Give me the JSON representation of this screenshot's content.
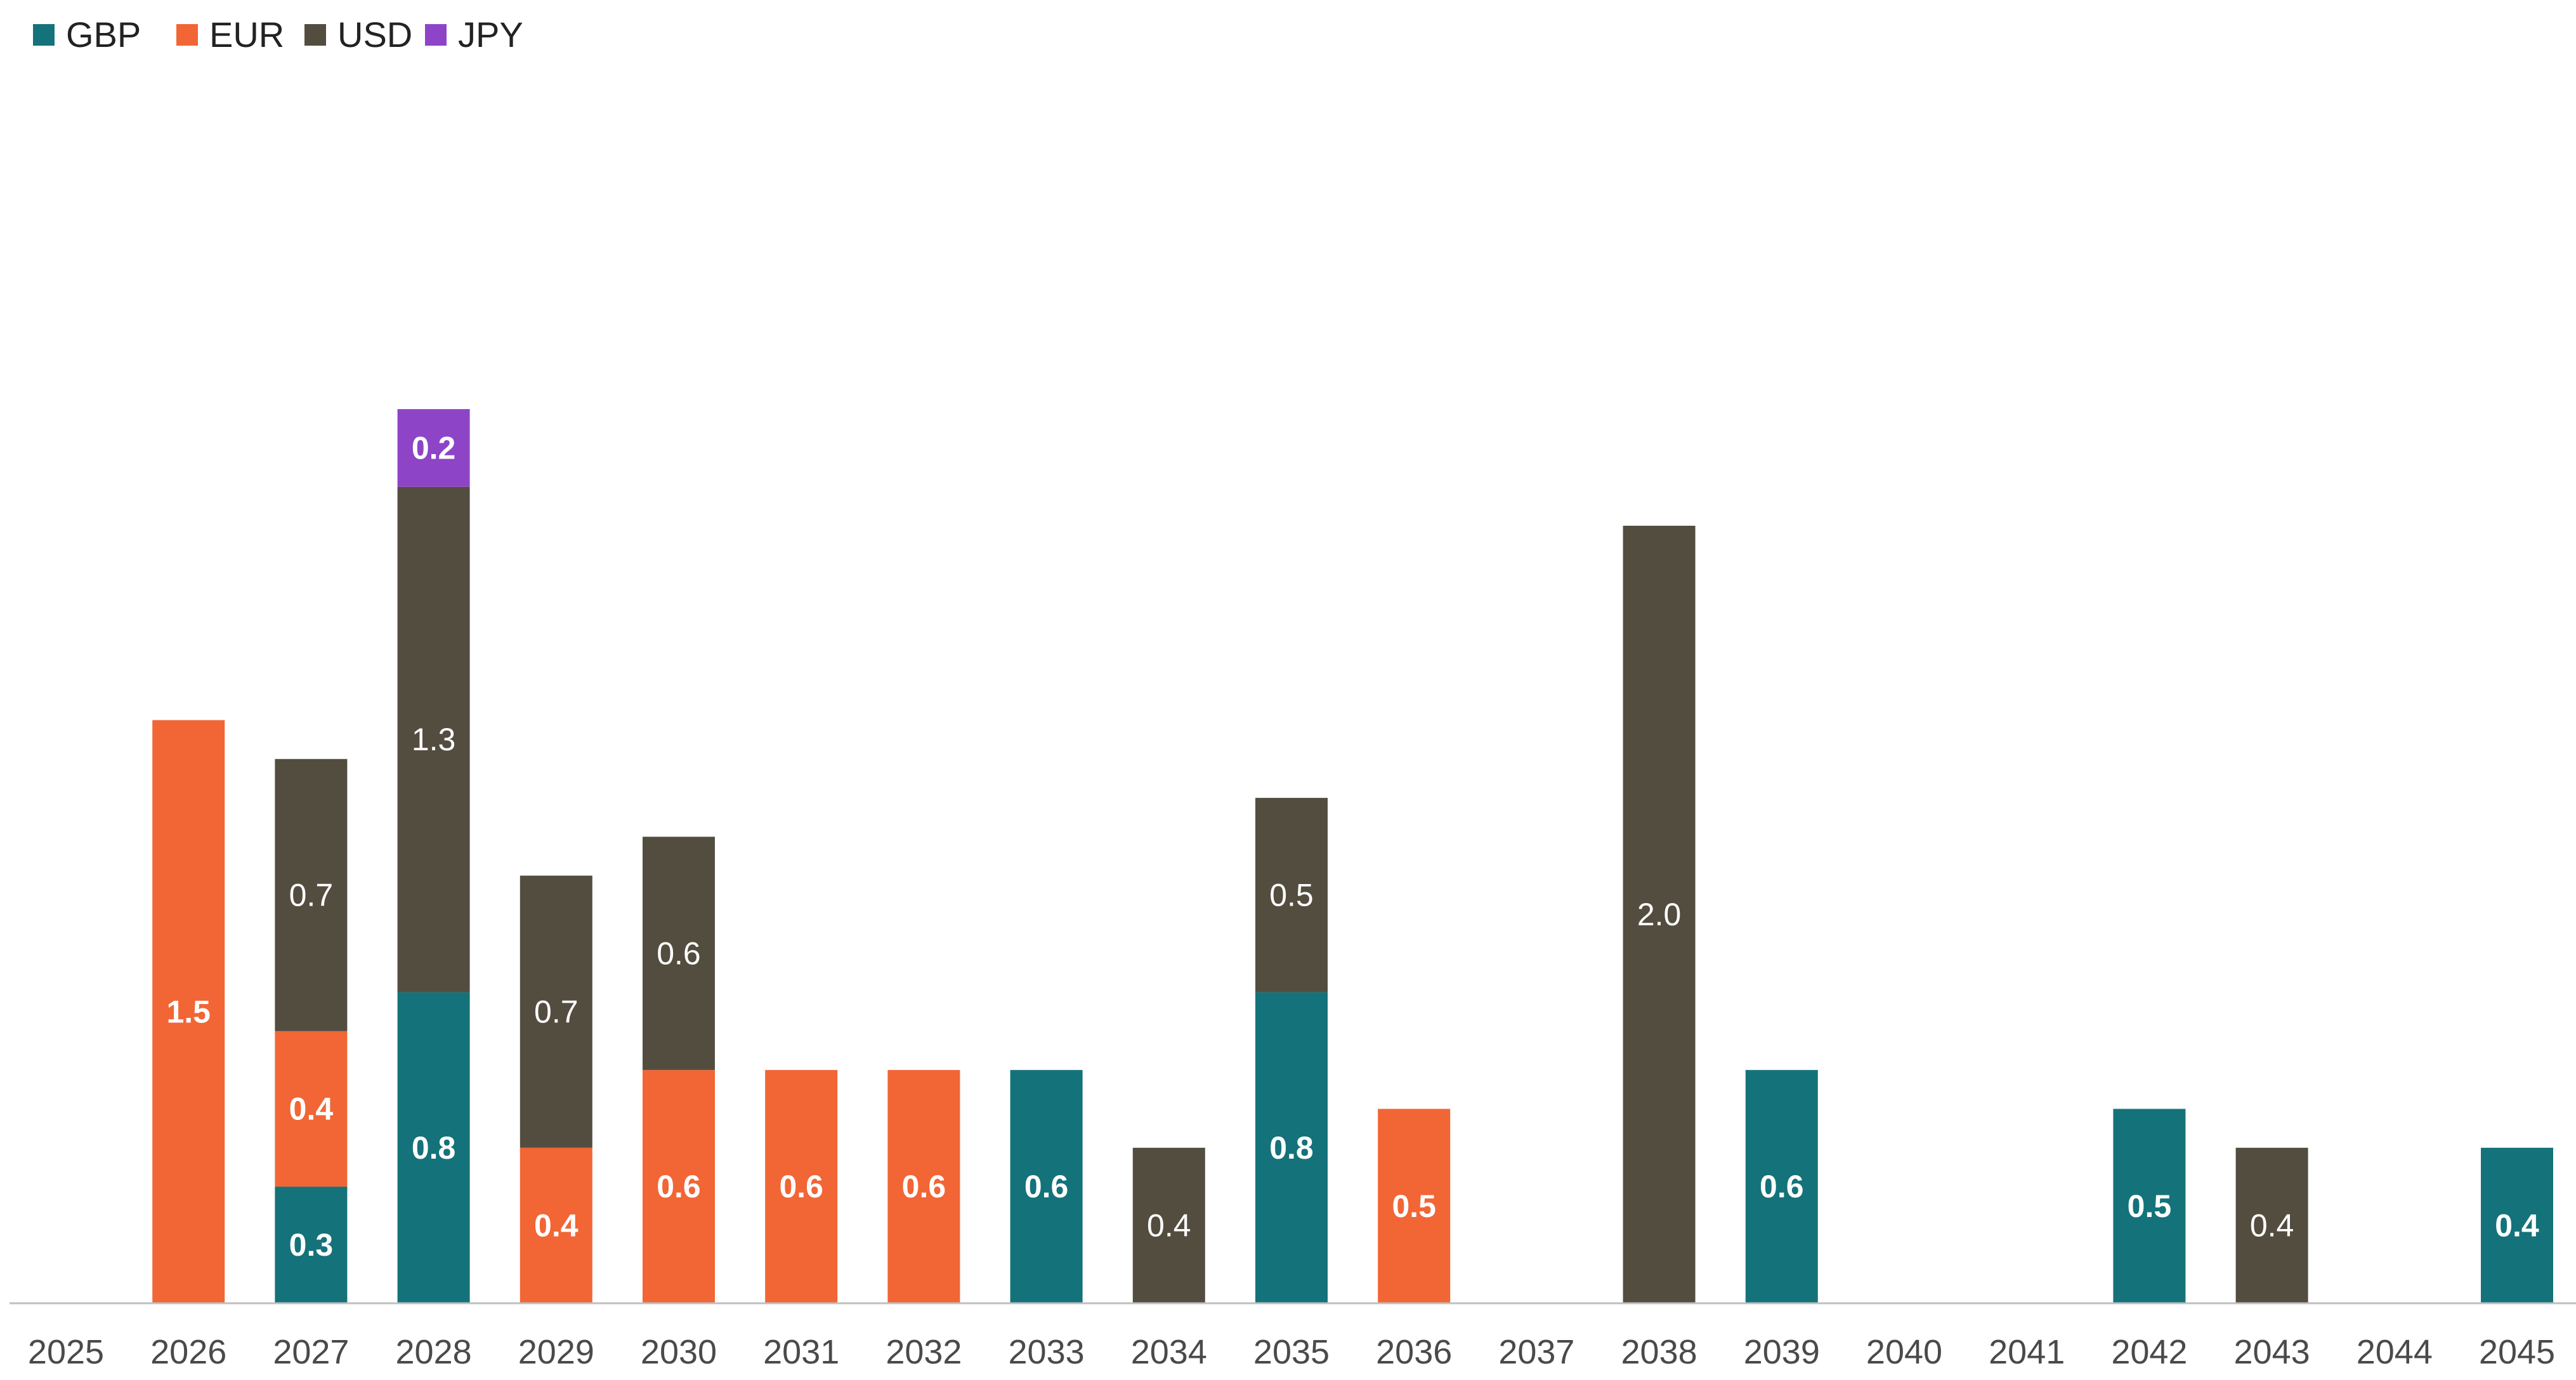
{
  "chart_data": {
    "type": "bar",
    "stacked": true,
    "title": "",
    "xlabel": "",
    "ylabel": "",
    "ylim": [
      0,
      3.3
    ],
    "grid": false,
    "legend_position": "top-left",
    "categories": [
      "2025",
      "2026",
      "2027",
      "2028",
      "2029",
      "2030",
      "2031",
      "2032",
      "2033",
      "2034",
      "2035",
      "2036",
      "2037",
      "2038",
      "2039",
      "2040",
      "2041",
      "2042",
      "2043",
      "2044",
      "2045"
    ],
    "series": [
      {
        "name": "GBP",
        "color": "#14727A",
        "label_bold": true,
        "values": [
          0,
          0,
          0.3,
          0.8,
          0,
          0,
          0,
          0,
          0.6,
          0,
          0.8,
          0,
          0,
          0,
          0.6,
          0,
          0,
          0.5,
          0,
          0,
          0.4
        ]
      },
      {
        "name": "EUR",
        "color": "#F26535",
        "label_bold": true,
        "values": [
          0,
          1.5,
          0.4,
          0,
          0.4,
          0.6,
          0.6,
          0.6,
          0,
          0,
          0,
          0.5,
          0,
          0,
          0,
          0,
          0,
          0,
          0,
          0,
          0
        ]
      },
      {
        "name": "USD",
        "color": "#534D40",
        "label_bold": false,
        "values": [
          0,
          0,
          0.7,
          1.3,
          0.7,
          0.6,
          0,
          0,
          0,
          0.4,
          0.5,
          0,
          0,
          2.0,
          0,
          0,
          0,
          0,
          0.4,
          0,
          0
        ]
      },
      {
        "name": "JPY",
        "color": "#8E44C7",
        "label_bold": true,
        "values": [
          0,
          0,
          0,
          0.2,
          0,
          0,
          0,
          0,
          0,
          0,
          0,
          0,
          0,
          0,
          0,
          0,
          0,
          0,
          0,
          0,
          0
        ]
      }
    ],
    "data_labels": [
      [
        "",
        "",
        "0.3",
        "0.8",
        "",
        "",
        "",
        "",
        "0.6",
        "",
        "0.8",
        "",
        "",
        "",
        "0.6",
        "",
        "",
        "0.5",
        "",
        "",
        "0.4"
      ],
      [
        "",
        "1.5",
        "0.4",
        "",
        "0.4",
        "0.6",
        "0.6",
        "0.6",
        "",
        "",
        "",
        "0.5",
        "",
        "",
        "",
        "",
        "",
        "",
        "",
        "",
        ""
      ],
      [
        "",
        "",
        "0.7",
        "1.3",
        "0.7",
        "0.6",
        "",
        "",
        "",
        "0.4",
        "0.5",
        "",
        "",
        "2.0",
        "",
        "",
        "",
        "",
        "0.4",
        "",
        ""
      ],
      [
        "",
        "",
        "",
        "0.2",
        "",
        "",
        "",
        "",
        "",
        "",
        "",
        "",
        "",
        "",
        "",
        "",
        "",
        "",
        "",
        "",
        ""
      ]
    ],
    "axis_color": "#BFBFBF"
  }
}
